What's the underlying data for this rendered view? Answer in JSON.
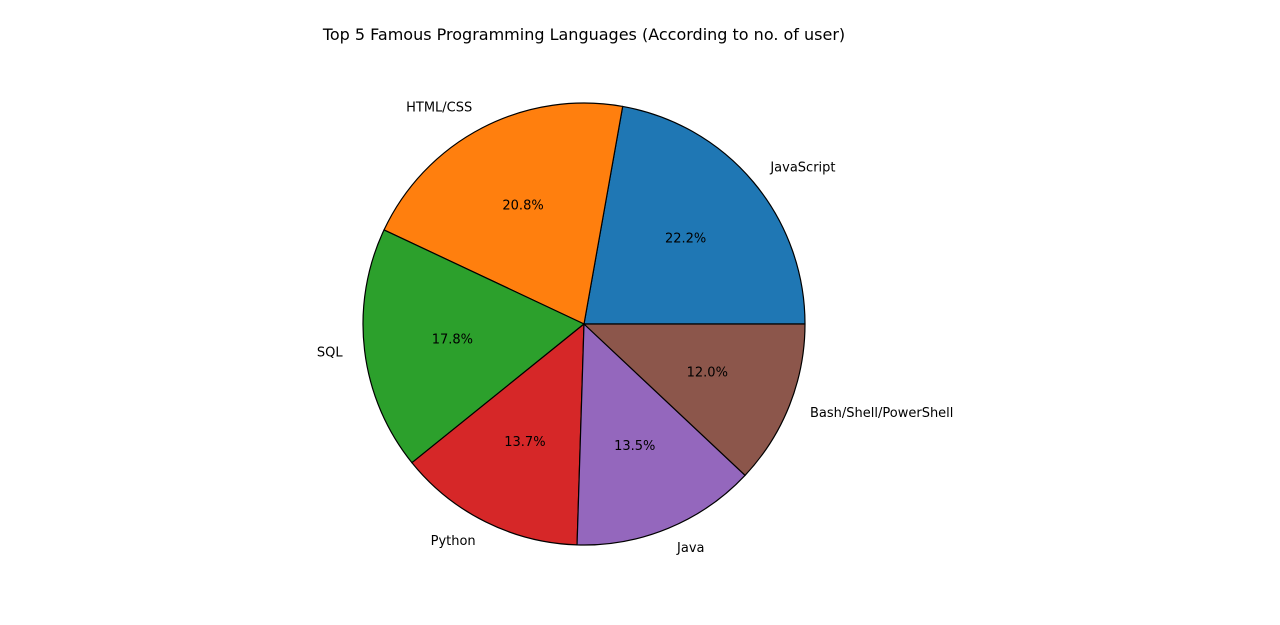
{
  "chart_data": {
    "type": "pie",
    "title": "Top 5 Famous Programming Languages (According to no. of user)",
    "labels": [
      "JavaScript",
      "HTML/CSS",
      "SQL",
      "Python",
      "Java",
      "Bash/Shell/PowerShell"
    ],
    "values": [
      22.2,
      20.8,
      17.8,
      13.7,
      13.5,
      12.0
    ],
    "value_labels": [
      "22.2%",
      "20.8%",
      "17.8%",
      "13.7%",
      "13.5%",
      "12.0%"
    ],
    "colors": [
      "#1f77b4",
      "#ff7f0e",
      "#2ca02c",
      "#d62728",
      "#9467bd",
      "#8c564b"
    ],
    "edge_color": "#000000",
    "start_angle_deg": 0,
    "direction": "counterclockwise",
    "legend": false
  }
}
